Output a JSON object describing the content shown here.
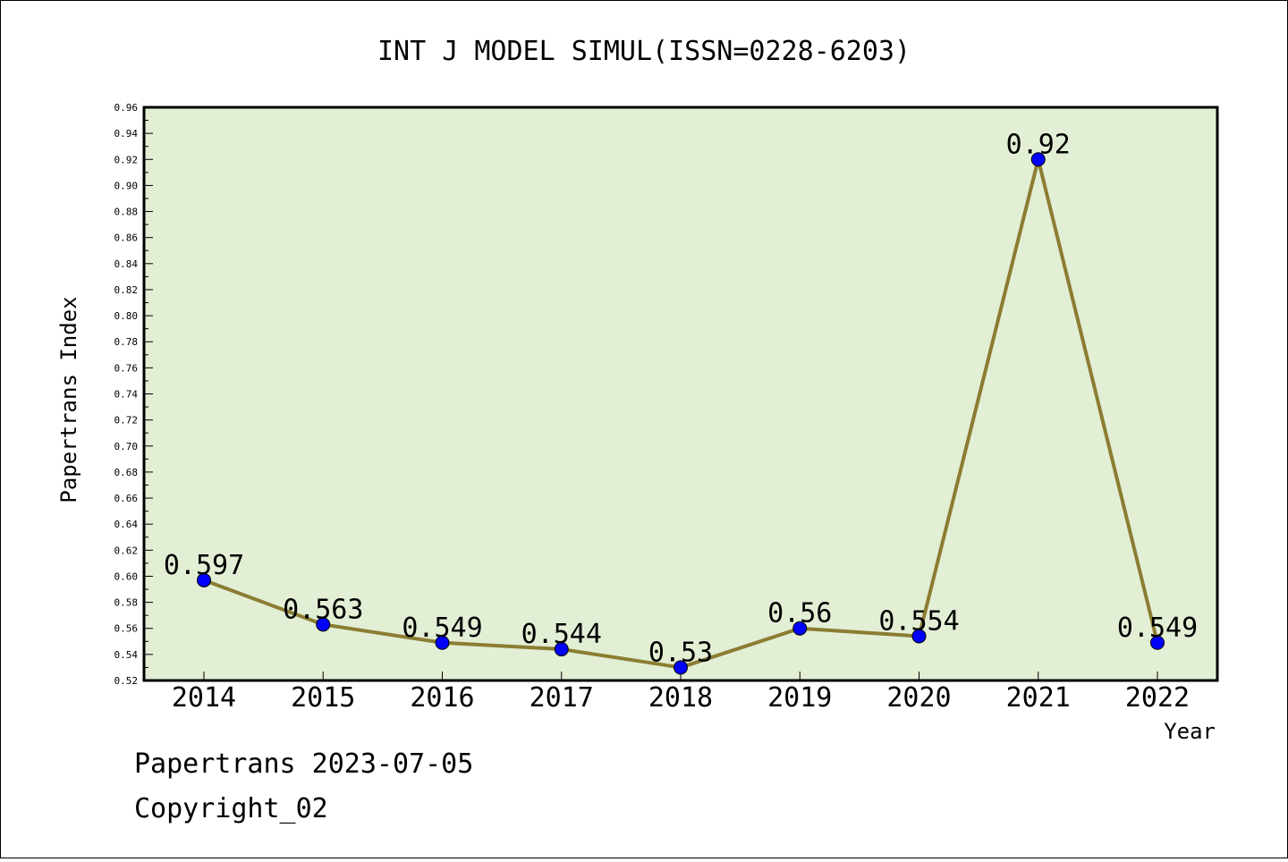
{
  "chart_data": {
    "type": "line",
    "title": "INT J MODEL SIMUL(ISSN=0228-6203)",
    "xlabel": "Year",
    "ylabel": "Papertrans Index",
    "categories": [
      "2014",
      "2015",
      "2016",
      "2017",
      "2018",
      "2019",
      "2020",
      "2021",
      "2022"
    ],
    "series": [
      {
        "values": [
          0.597,
          0.563,
          0.549,
          0.544,
          0.53,
          0.56,
          0.554,
          0.92,
          0.549
        ],
        "labels": [
          "0.597",
          "0.563",
          "0.549",
          "0.544",
          "0.53",
          "0.56",
          "0.554",
          "0.92",
          "0.549"
        ]
      }
    ],
    "ylim": [
      0.52,
      0.96
    ],
    "ytick_step": 0.02,
    "ytick_labels": [
      "0.52",
      "0.54",
      "0.56",
      "0.58",
      "0.60",
      "0.62",
      "0.64",
      "0.66",
      "0.68",
      "0.70",
      "0.72",
      "0.74",
      "0.76",
      "0.78",
      "0.80",
      "0.82",
      "0.84",
      "0.86",
      "0.88",
      "0.90",
      "0.92",
      "0.94",
      "0.96"
    ],
    "grid": false,
    "legend": "none",
    "colors": {
      "plot_background": "#e2efd5",
      "line": "#8b7d32",
      "marker": "#0000ff"
    }
  },
  "footer": {
    "line1": "Papertrans 2023-07-05",
    "line2": "Copyright_02"
  }
}
